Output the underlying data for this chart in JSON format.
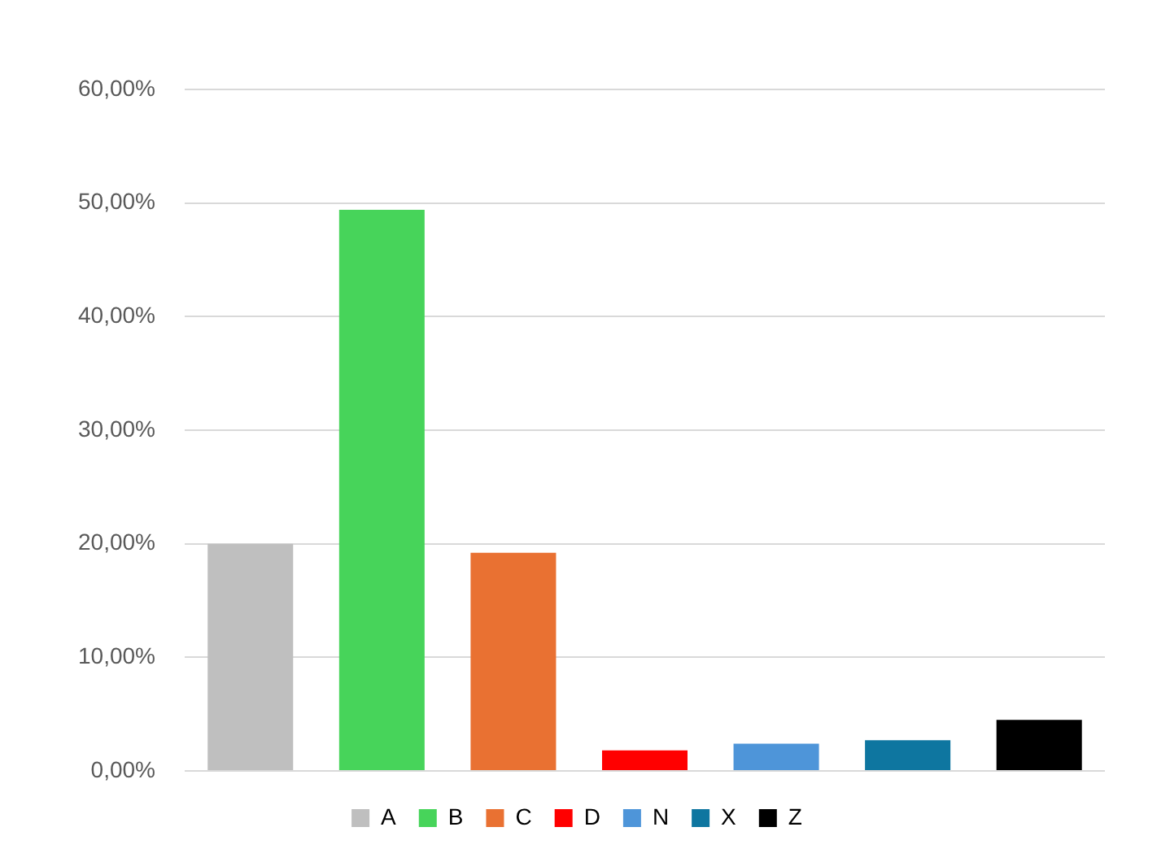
{
  "chart_data": {
    "type": "bar",
    "categories": [
      null,
      null,
      null,
      null,
      null,
      null,
      null
    ],
    "series": [
      {
        "name": "A",
        "color": "#bfbfbf",
        "values": [
          20,
          null,
          null,
          null,
          null,
          null,
          null
        ]
      },
      {
        "name": "B",
        "color": "#47d45a",
        "values": [
          null,
          49.4,
          null,
          null,
          null,
          null,
          null
        ]
      },
      {
        "name": "C",
        "color": "#e97132",
        "values": [
          null,
          null,
          19.2,
          null,
          null,
          null,
          null
        ]
      },
      {
        "name": "D",
        "color": "#ff0000",
        "values": [
          null,
          null,
          null,
          1.8,
          null,
          null,
          null
        ]
      },
      {
        "name": "N",
        "color": "#4e95d9",
        "values": [
          null,
          null,
          null,
          null,
          2.4,
          null,
          null
        ]
      },
      {
        "name": "X",
        "color": "#0e76a0",
        "values": [
          null,
          null,
          null,
          null,
          null,
          2.7,
          null
        ]
      },
      {
        "name": "Z",
        "color": "#000000",
        "values": [
          null,
          null,
          null,
          null,
          null,
          null,
          4.5
        ]
      }
    ],
    "ylim": [
      0,
      60
    ],
    "yticks": [
      {
        "value": 0,
        "label": "0,00%"
      },
      {
        "value": 10,
        "label": "10,00%"
      },
      {
        "value": 20,
        "label": "20,00%"
      },
      {
        "value": 30,
        "label": "30,00%"
      },
      {
        "value": 40,
        "label": "40,00%"
      },
      {
        "value": 50,
        "label": "50,00%"
      },
      {
        "value": 60,
        "label": "60,00%"
      }
    ],
    "grid": "y",
    "legend": "bottom",
    "tick_labels": "y"
  }
}
